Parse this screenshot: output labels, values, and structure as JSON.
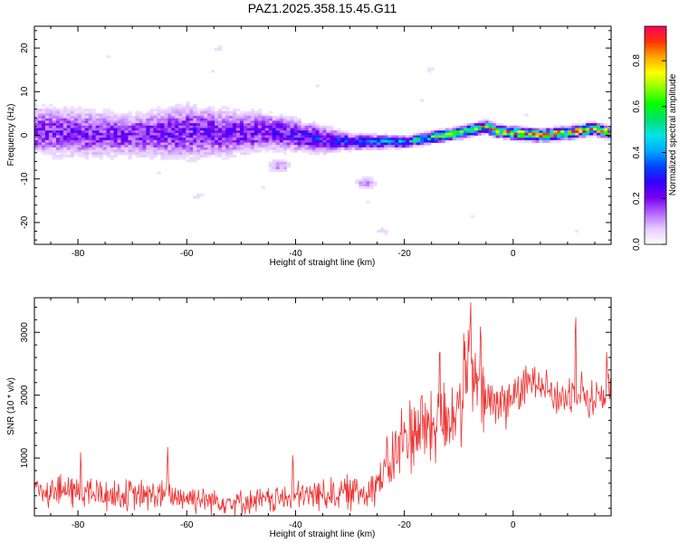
{
  "figure_title": "PAZ1.2025.358.15.45.G11",
  "chart_data": [
    {
      "type": "heatmap",
      "title": "PAZ1.2025.358.15.45.G11",
      "xlabel": "Height of straight line (km)",
      "ylabel": "Frequency (Hz)",
      "xlim": [
        -88,
        18
      ],
      "ylim": [
        -25,
        25
      ],
      "xticks": [
        -80,
        -60,
        -40,
        -20,
        0
      ],
      "xtick_labels": [
        "-80",
        "-60",
        "-40",
        "-20",
        "0"
      ],
      "yticks": [
        -20,
        -10,
        0,
        10,
        20
      ],
      "ytick_labels": [
        "-20",
        "-10",
        "0",
        "10",
        "20"
      ],
      "colorbar": {
        "label": "Normalized spectral amplitude",
        "range": [
          0,
          0.95
        ],
        "ticks": [
          0.0,
          0.2,
          0.4,
          0.6,
          0.8
        ],
        "tick_labels": [
          "0.0",
          "0.2",
          "0.4",
          "0.6",
          "0.8"
        ],
        "colormap": [
          "#ffffff",
          "#e6ccff",
          "#b366ff",
          "#7700ee",
          "#3300ff",
          "#0044ff",
          "#00aaff",
          "#00e5e5",
          "#00e070",
          "#00ff00",
          "#88ff00",
          "#ffff00",
          "#ffaa00",
          "#ff3300",
          "#ff0066"
        ]
      },
      "ridge": {
        "height_km": [
          -87,
          -80,
          -70,
          -60,
          -50,
          -45,
          -40,
          -35,
          -30,
          -25,
          -20,
          -15,
          -10,
          -5,
          -3,
          0,
          5,
          10,
          15,
          18
        ],
        "center_freq_hz": [
          1.0,
          0.5,
          0.0,
          0.8,
          0.5,
          1.0,
          0.0,
          -1.0,
          -1.5,
          -1.5,
          -1.5,
          -0.5,
          0.5,
          2.0,
          1.0,
          0.5,
          0.0,
          0.5,
          1.5,
          0.5
        ],
        "peak_amplitude": [
          0.2,
          0.2,
          0.2,
          0.22,
          0.22,
          0.22,
          0.25,
          0.28,
          0.3,
          0.4,
          0.45,
          0.55,
          0.65,
          0.75,
          0.8,
          0.85,
          0.88,
          0.85,
          0.88,
          0.85
        ],
        "spread_hz": [
          4.5,
          4.5,
          4.0,
          5.0,
          4.0,
          3.5,
          3.0,
          2.5,
          1.5,
          1.2,
          1.0,
          1.0,
          1.0,
          1.0,
          1.0,
          1.0,
          1.0,
          1.0,
          1.0,
          1.0
        ]
      },
      "blobs": [
        {
          "height_km": -43,
          "freq_hz": -7,
          "amplitude": 0.12
        },
        {
          "height_km": -27,
          "freq_hz": -11,
          "amplitude": 0.12
        },
        {
          "height_km": -54,
          "freq_hz": 20,
          "amplitude": 0.05
        },
        {
          "height_km": -58,
          "freq_hz": -14,
          "amplitude": 0.05
        },
        {
          "height_km": -24,
          "freq_hz": -22,
          "amplitude": 0.05
        },
        {
          "height_km": -15,
          "freq_hz": 15,
          "amplitude": 0.04
        }
      ]
    },
    {
      "type": "line",
      "xlabel": "Height of straight line (km)",
      "ylabel": "SNR (10 * v/v)",
      "xlim": [
        -88,
        18
      ],
      "ylim": [
        80,
        3550
      ],
      "xticks": [
        -80,
        -60,
        -40,
        -20,
        0
      ],
      "xtick_labels": [
        "-80",
        "-60",
        "-40",
        "-20",
        "0"
      ],
      "yticks": [
        1000,
        2000,
        3000
      ],
      "ytick_labels": [
        "1000",
        "2000",
        "3000"
      ],
      "series": [
        {
          "name": "SNR",
          "color": "#ee3333",
          "x": [
            -88,
            -80,
            -75,
            -70,
            -65,
            -60,
            -55,
            -50,
            -45,
            -40,
            -35,
            -30,
            -27,
            -25,
            -22,
            -20,
            -18,
            -15,
            -12,
            -10,
            -8,
            -6,
            -4,
            -2,
            0,
            2,
            4,
            6,
            8,
            10,
            12,
            14,
            16,
            18
          ],
          "y": [
            500,
            470,
            420,
            400,
            410,
            380,
            330,
            300,
            330,
            380,
            430,
            450,
            480,
            600,
            1000,
            1300,
            1500,
            1500,
            1650,
            1800,
            2500,
            1900,
            1900,
            1850,
            2000,
            2100,
            2300,
            2200,
            1900,
            2000,
            2150,
            1900,
            2000,
            2100
          ],
          "noise": [
            250,
            260,
            250,
            240,
            240,
            230,
            200,
            180,
            200,
            220,
            250,
            260,
            280,
            320,
            500,
            600,
            650,
            650,
            650,
            700,
            700,
            600,
            500,
            400,
            350,
            300,
            280,
            280,
            280,
            300,
            300,
            300,
            300,
            300
          ],
          "peaks": [
            {
              "x": -7.8,
              "y": 3500
            },
            {
              "x": -6.0,
              "y": 3170
            },
            {
              "x": 11.5,
              "y": 3300
            },
            {
              "x": 17.2,
              "y": 2760
            },
            {
              "x": -79.5,
              "y": 1150
            },
            {
              "x": -63.5,
              "y": 1180
            },
            {
              "x": -40.5,
              "y": 1150
            },
            {
              "x": -13.5,
              "y": 2850
            }
          ]
        }
      ]
    }
  ]
}
